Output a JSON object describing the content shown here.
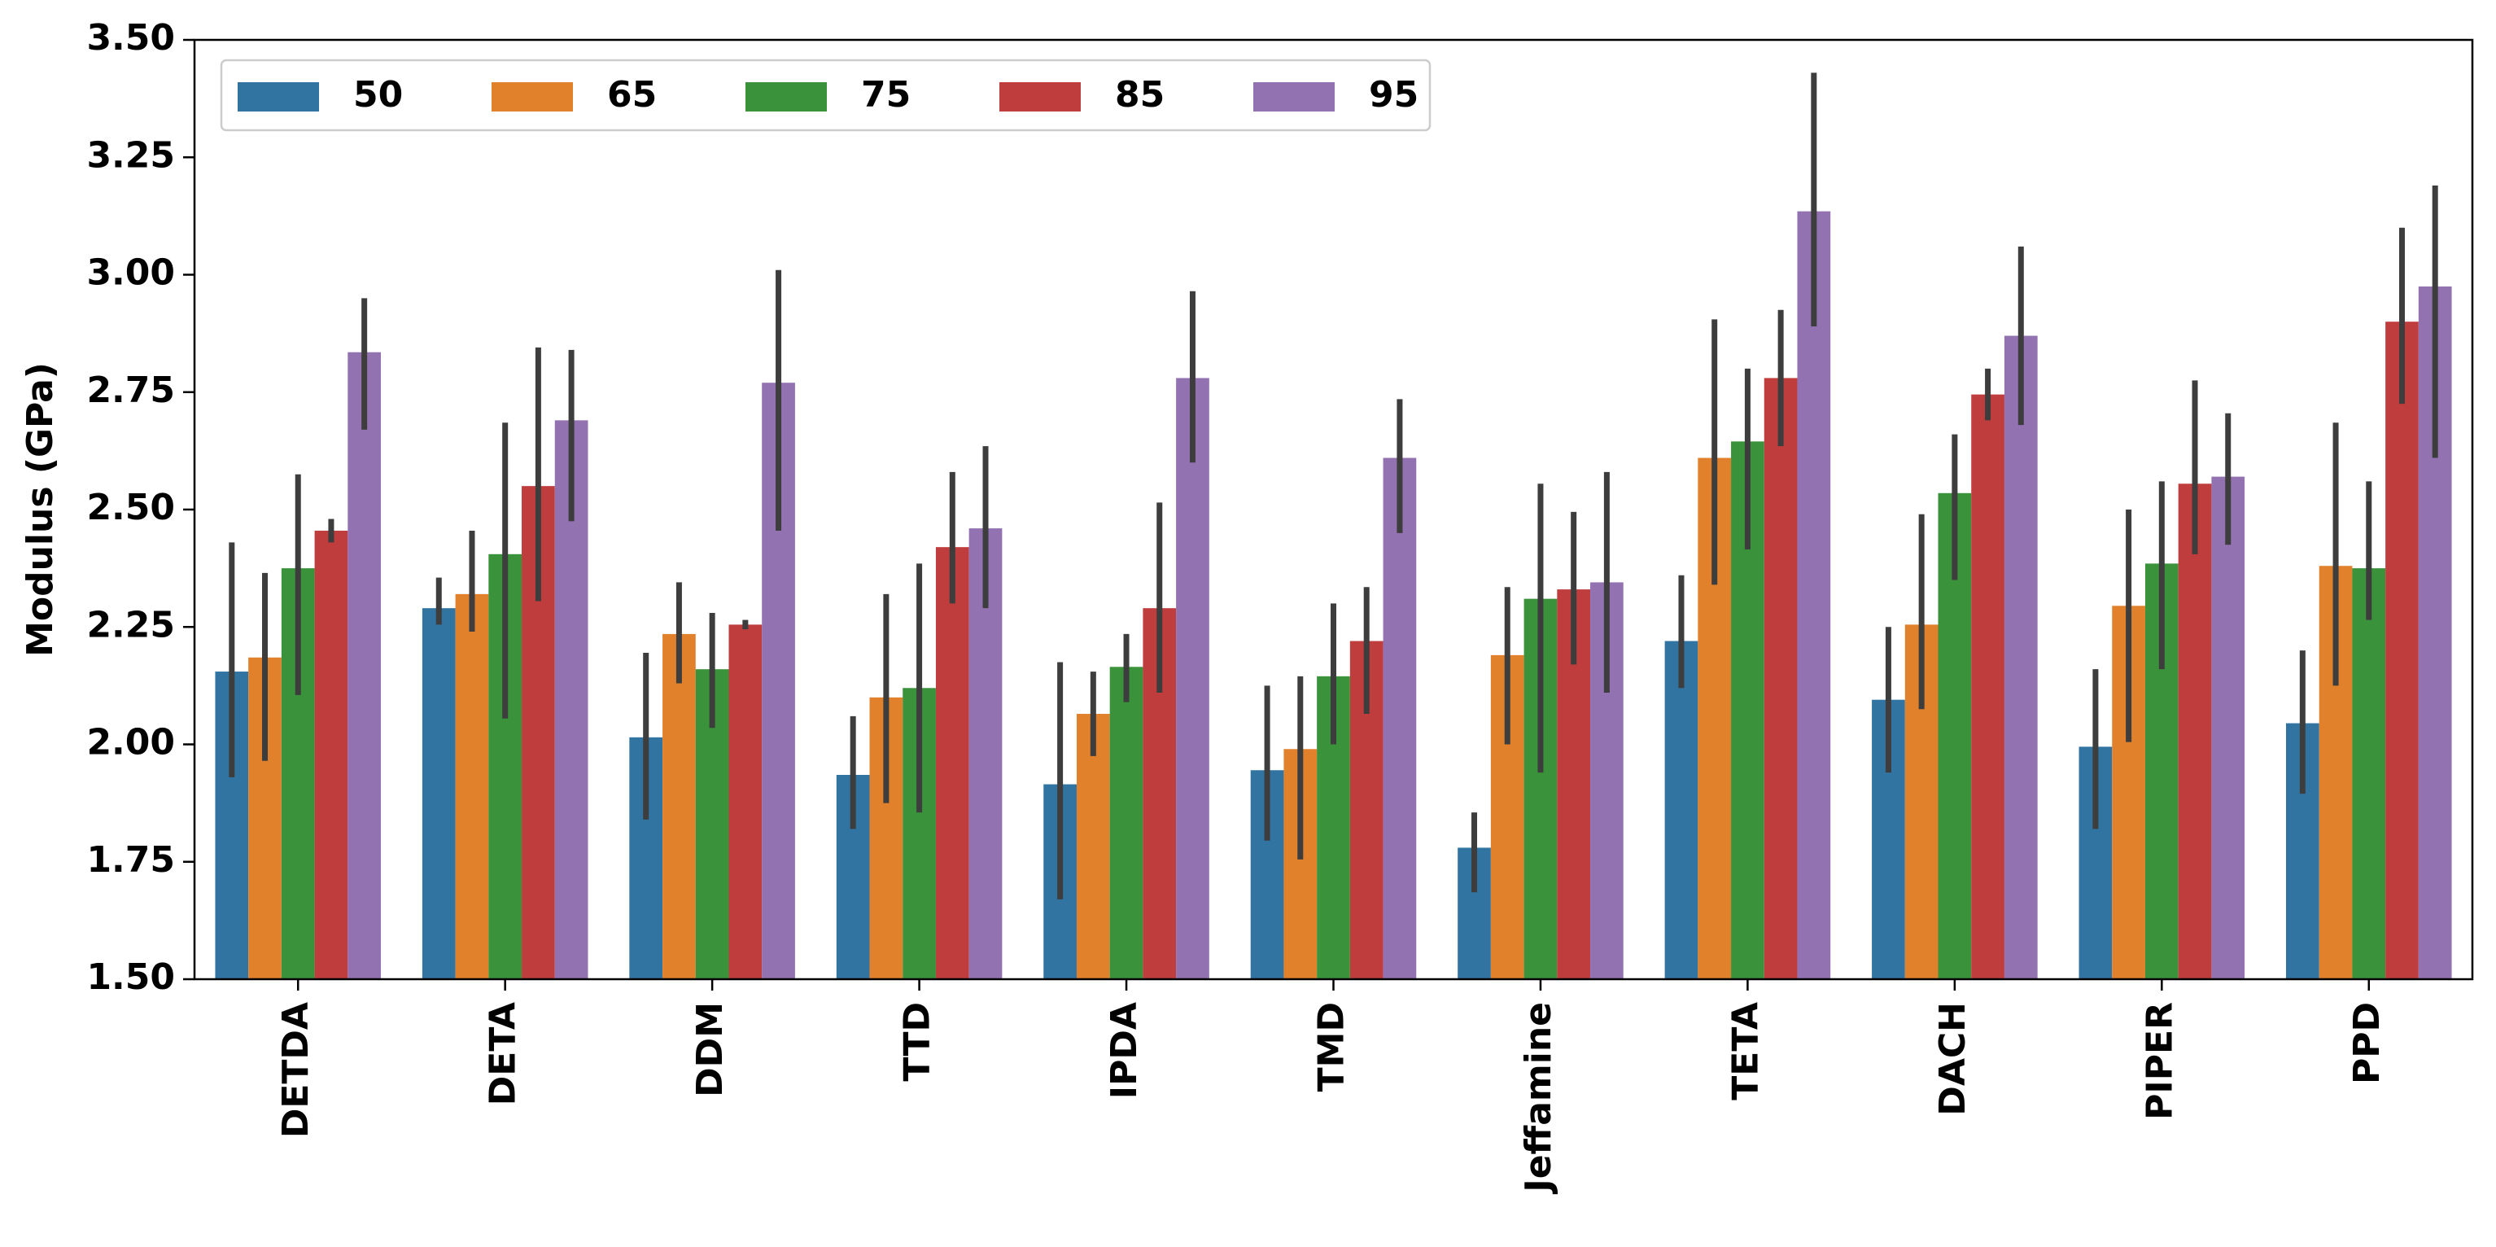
{
  "chart_data": {
    "type": "bar",
    "y_label": "Modulus (GPa)",
    "categories": [
      "DETDA",
      "DETA",
      "DDM",
      "TTD",
      "IPDA",
      "TMD",
      "Jeffamine",
      "TETA",
      "DACH",
      "PIPER",
      "PPD"
    ],
    "series": [
      {
        "name": "50",
        "color": "#3274a1",
        "values": [
          2.155,
          2.29,
          2.015,
          1.935,
          1.915,
          1.945,
          1.78,
          2.22,
          2.095,
          1.995,
          2.045
        ],
        "ci_low": [
          1.93,
          2.255,
          1.84,
          1.82,
          1.67,
          1.795,
          1.685,
          2.12,
          1.94,
          1.82,
          1.895
        ],
        "ci_high": [
          2.43,
          2.355,
          2.195,
          2.06,
          2.175,
          2.125,
          1.855,
          2.36,
          2.25,
          2.16,
          2.2
        ]
      },
      {
        "name": "65",
        "color": "#e1812c",
        "values": [
          2.185,
          2.32,
          2.235,
          2.1,
          2.065,
          1.99,
          2.19,
          2.61,
          2.255,
          2.295,
          2.38
        ],
        "ci_low": [
          1.965,
          2.24,
          2.13,
          1.875,
          1.975,
          1.755,
          2.0,
          2.34,
          2.075,
          2.005,
          2.125
        ],
        "ci_high": [
          2.365,
          2.455,
          2.345,
          2.32,
          2.155,
          2.145,
          2.335,
          2.905,
          2.49,
          2.5,
          2.685
        ]
      },
      {
        "name": "75",
        "color": "#3a923a",
        "values": [
          2.375,
          2.405,
          2.16,
          2.12,
          2.165,
          2.145,
          2.31,
          2.645,
          2.535,
          2.385,
          2.375
        ],
        "ci_low": [
          2.105,
          2.055,
          2.035,
          1.855,
          2.09,
          2.0,
          1.94,
          2.415,
          2.35,
          2.16,
          2.265
        ],
        "ci_high": [
          2.575,
          2.685,
          2.28,
          2.385,
          2.235,
          2.3,
          2.555,
          2.8,
          2.66,
          2.56,
          2.56
        ]
      },
      {
        "name": "85",
        "color": "#c03d3e",
        "values": [
          2.455,
          2.55,
          2.255,
          2.42,
          2.29,
          2.22,
          2.33,
          2.78,
          2.745,
          2.555,
          2.9
        ],
        "ci_low": [
          2.43,
          2.305,
          2.245,
          2.3,
          2.11,
          2.065,
          2.17,
          2.635,
          2.69,
          2.405,
          2.725
        ],
        "ci_high": [
          2.48,
          2.845,
          2.265,
          2.58,
          2.515,
          2.335,
          2.495,
          2.925,
          2.8,
          2.775,
          3.1
        ]
      },
      {
        "name": "95",
        "color": "#9372b2",
        "values": [
          2.835,
          2.69,
          2.77,
          2.46,
          2.78,
          2.61,
          2.345,
          3.135,
          2.87,
          2.57,
          2.975
        ],
        "ci_low": [
          2.67,
          2.475,
          2.455,
          2.29,
          2.6,
          2.45,
          2.11,
          2.89,
          2.68,
          2.425,
          2.61
        ],
        "ci_high": [
          2.95,
          2.84,
          3.01,
          2.635,
          2.965,
          2.735,
          2.58,
          3.43,
          3.06,
          2.705,
          3.19
        ]
      }
    ],
    "ylim": [
      1.5,
      3.5
    ],
    "yticks": [
      {
        "value": 1.5,
        "label": "1.50"
      },
      1.75,
      {
        "value": 2,
        "label": "2.00"
      },
      2.25,
      {
        "value": 2.5,
        "label": "2.50"
      },
      2.75,
      {
        "value": 3,
        "label": "3.00"
      },
      3.25,
      {
        "value": 3.5,
        "label": "3.50"
      }
    ],
    "legend": "upper left",
    "legend_columns": 5,
    "errorbar_color": "#3d3d3d"
  }
}
